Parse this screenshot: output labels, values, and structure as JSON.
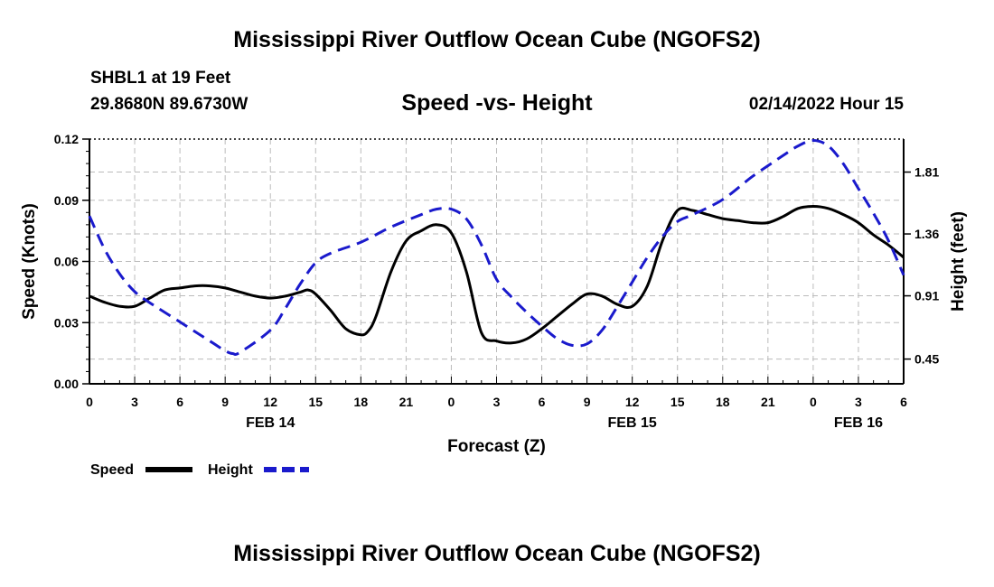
{
  "header": {
    "title": "Mississippi River Outflow Ocean Cube (NGOFS2)",
    "station": "SHBL1 at 19 Feet",
    "coords": "29.8680N  89.6730W",
    "subtitle": "Speed -vs- Height",
    "datetime": "02/14/2022 Hour 15"
  },
  "footer": {
    "title": "Mississippi River Outflow Ocean Cube (NGOFS2)"
  },
  "colors": {
    "speed": "#000000",
    "height": "#1a1acc",
    "grid": "#bbbbbb"
  },
  "chart_data": {
    "type": "line",
    "xlabel": "Forecast (Z)",
    "ylabel": "Speed (Knots)",
    "y2label": "Height (feet)",
    "x_range": [
      0,
      54
    ],
    "ylim": [
      0,
      0.12
    ],
    "y2lim": [
      0.27,
      2.05
    ],
    "x_ticks": [
      0,
      3,
      6,
      9,
      12,
      15,
      18,
      21,
      24,
      27,
      30,
      33,
      36,
      39,
      42,
      45,
      48,
      51,
      54
    ],
    "x_tick_labels": [
      "0",
      "3",
      "6",
      "9",
      "12",
      "15",
      "18",
      "21",
      "0",
      "3",
      "6",
      "9",
      "12",
      "15",
      "18",
      "21",
      "0",
      "3",
      "6"
    ],
    "day_labels": [
      {
        "x": 12,
        "label": "FEB 14"
      },
      {
        "x": 36,
        "label": "FEB 15"
      },
      {
        "x": 51,
        "label": "FEB 16"
      }
    ],
    "y_ticks": [
      0.0,
      0.03,
      0.06,
      0.09,
      0.12
    ],
    "y_tick_labels": [
      "0.00",
      "0.03",
      "0.06",
      "0.09",
      "0.12"
    ],
    "y2_ticks": [
      0.45,
      0.91,
      1.36,
      1.81
    ],
    "y2_tick_labels": [
      "0.45",
      "0.91",
      "1.36",
      "1.81"
    ],
    "grid": true,
    "legend": [
      {
        "label": "Speed",
        "series": "Speed"
      },
      {
        "label": "Height",
        "series": "Height"
      }
    ],
    "series": [
      {
        "name": "Speed",
        "axis": "left",
        "style": "solid",
        "x": [
          0,
          1,
          2,
          3,
          4,
          5,
          6,
          7,
          8,
          9,
          10,
          11,
          12,
          13,
          14,
          14.5,
          15,
          16,
          17,
          18,
          18.5,
          19,
          20,
          21,
          22,
          23,
          24,
          25,
          26,
          27,
          28,
          29,
          30,
          31,
          32,
          33,
          34,
          35,
          36,
          37,
          38,
          39,
          40,
          41,
          42,
          43,
          44,
          45,
          46,
          47,
          48,
          49,
          50,
          51,
          52,
          53,
          54
        ],
        "values": [
          0.043,
          0.04,
          0.038,
          0.038,
          0.042,
          0.046,
          0.047,
          0.048,
          0.048,
          0.047,
          0.045,
          0.043,
          0.042,
          0.043,
          0.045,
          0.046,
          0.044,
          0.036,
          0.027,
          0.024,
          0.026,
          0.033,
          0.055,
          0.07,
          0.075,
          0.078,
          0.074,
          0.055,
          0.025,
          0.021,
          0.02,
          0.022,
          0.027,
          0.033,
          0.039,
          0.044,
          0.043,
          0.039,
          0.038,
          0.048,
          0.07,
          0.085,
          0.085,
          0.083,
          0.081,
          0.08,
          0.079,
          0.079,
          0.082,
          0.086,
          0.087,
          0.086,
          0.083,
          0.079,
          0.073,
          0.068,
          0.062
        ]
      },
      {
        "name": "Height",
        "axis": "right",
        "style": "dashed",
        "x": [
          0,
          1,
          2,
          3,
          4,
          6,
          8,
          9,
          9.5,
          10,
          12,
          13,
          14,
          15,
          16,
          18,
          20,
          22,
          23,
          24,
          25,
          26,
          27,
          28,
          29,
          30,
          31,
          32,
          33,
          34,
          35,
          36,
          37,
          38,
          39,
          40,
          42,
          44,
          46,
          47,
          48,
          49,
          50,
          51,
          52,
          53,
          54
        ],
        "values": [
          1.49,
          1.25,
          1.07,
          0.94,
          0.86,
          0.72,
          0.58,
          0.51,
          0.49,
          0.5,
          0.66,
          0.82,
          1.0,
          1.15,
          1.22,
          1.3,
          1.41,
          1.5,
          1.54,
          1.54,
          1.47,
          1.28,
          1.03,
          0.9,
          0.79,
          0.69,
          0.6,
          0.55,
          0.56,
          0.66,
          0.83,
          1.01,
          1.19,
          1.34,
          1.45,
          1.5,
          1.61,
          1.78,
          1.93,
          2.0,
          2.04,
          2.0,
          1.87,
          1.69,
          1.51,
          1.31,
          1.06
        ]
      }
    ]
  }
}
